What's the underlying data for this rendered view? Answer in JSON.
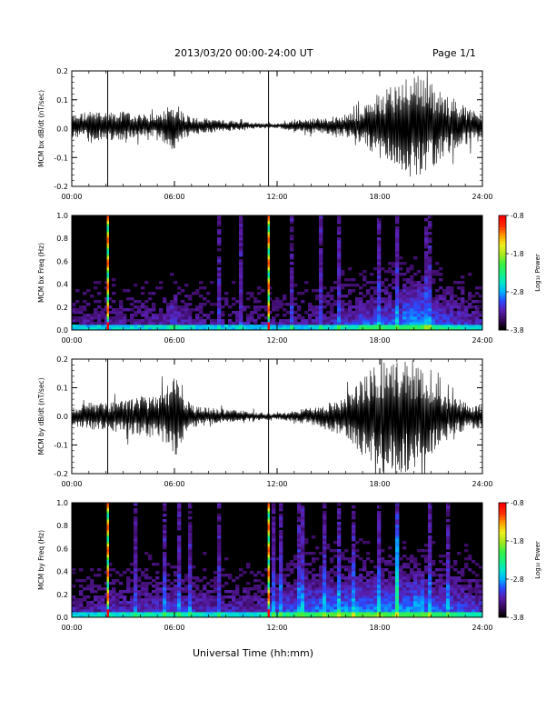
{
  "header": {
    "title": "2013/03/20  00:00-24:00 UT",
    "page": "Page 1/1"
  },
  "x_axis_title": "Universal Time (hh:mm)",
  "colors": {
    "trace": "#000000",
    "spectrogram_background": "#000000",
    "colorscale": [
      "#000000",
      "#3a0a5e",
      "#5a1fb0",
      "#2a49ff",
      "#00b4ff",
      "#00e8c8",
      "#19f07a",
      "#3cf040",
      "#a8e81c",
      "#f0f020",
      "#ffa000",
      "#ff3000",
      "#ff0000"
    ]
  },
  "chart_data": [
    {
      "type": "line",
      "ylabel": "MCM bx dB/dt (nT/sec)",
      "xlim": [
        0,
        24
      ],
      "ylim": [
        -0.2,
        0.2
      ],
      "xticks": [
        "00:00",
        "06:00",
        "12:00",
        "18:00",
        "24:00"
      ],
      "yticks": [
        "-0.2",
        "-0.1",
        "0.0",
        "0.1",
        "0.2"
      ],
      "marker_lines_hours": [
        2.1,
        11.5
      ],
      "envelope": {
        "hours": [
          0,
          1,
          2,
          3,
          4,
          5,
          6,
          6.5,
          7,
          8,
          9,
          10,
          11,
          12,
          13,
          14,
          15,
          16,
          16.5,
          17,
          17.5,
          18,
          18.5,
          19,
          19.5,
          20,
          20.5,
          21,
          21.5,
          22,
          23,
          24
        ],
        "amplitude": [
          0.04,
          0.05,
          0.05,
          0.05,
          0.04,
          0.04,
          0.09,
          0.05,
          0.03,
          0.025,
          0.02,
          0.015,
          0.01,
          0.008,
          0.02,
          0.025,
          0.03,
          0.04,
          0.05,
          0.06,
          0.09,
          0.12,
          0.14,
          0.15,
          0.17,
          0.2,
          0.18,
          0.15,
          0.12,
          0.1,
          0.07,
          0.04
        ],
        "offset": 0.01
      }
    },
    {
      "type": "heatmap",
      "ylabel": "MCM bx Freq (Hz)",
      "xlim": [
        0,
        24
      ],
      "ylim": [
        0,
        1.0
      ],
      "xticks": [
        "00:00",
        "06:00",
        "12:00",
        "18:00",
        "24:00"
      ],
      "yticks": [
        "0.0",
        "0.2",
        "0.4",
        "0.6",
        "0.8",
        "1.0"
      ],
      "colorbar": {
        "label": "Log₁₀ Power",
        "ticks": [
          "-0.8",
          "-1.8",
          "-2.8",
          "-3.8"
        ],
        "range": [
          -3.8,
          -0.8
        ]
      },
      "marker_lines_hours": [
        2.1,
        11.5
      ],
      "bursts": [
        {
          "hour": 6.0,
          "width": 0.5,
          "fmax": 0.35,
          "level": 0.35
        },
        {
          "hour": 17.5,
          "width": 1.6,
          "fmax": 0.25,
          "level": 0.4
        },
        {
          "hour": 20.0,
          "width": 1.2,
          "fmax": 0.45,
          "level": 0.45
        }
      ],
      "spikes_hours": [
        8.6,
        9.8,
        12.8,
        14.6,
        15.6,
        18.0,
        19.0,
        20.8,
        21.0
      ],
      "activity_by_hour": [
        0.2,
        0.2,
        0.22,
        0.22,
        0.22,
        0.24,
        0.28,
        0.22,
        0.2,
        0.2,
        0.2,
        0.2,
        0.2,
        0.22,
        0.22,
        0.25,
        0.3,
        0.34,
        0.38,
        0.42,
        0.45,
        0.4,
        0.35,
        0.3,
        0.25
      ]
    },
    {
      "type": "line",
      "ylabel": "MCM by dB/dt (nT/sec)",
      "xlim": [
        0,
        24
      ],
      "ylim": [
        -0.2,
        0.2
      ],
      "xticks": [
        "00:00",
        "06:00",
        "12:00",
        "18:00",
        "24:00"
      ],
      "yticks": [
        "-0.2",
        "-0.1",
        "0.0",
        "0.1",
        "0.2"
      ],
      "marker_lines_hours": [
        2.1,
        11.5
      ],
      "envelope": {
        "hours": [
          0,
          1,
          2,
          3,
          4,
          5,
          5.5,
          6,
          6.5,
          7,
          8,
          9,
          10,
          11,
          12,
          13,
          14,
          15,
          16,
          16.5,
          17,
          17.5,
          18,
          18.5,
          19,
          19.5,
          20,
          20.5,
          21,
          21.5,
          22,
          23,
          24
        ],
        "amplitude": [
          0.03,
          0.05,
          0.05,
          0.06,
          0.07,
          0.08,
          0.1,
          0.15,
          0.08,
          0.04,
          0.03,
          0.025,
          0.02,
          0.015,
          0.01,
          0.02,
          0.03,
          0.05,
          0.07,
          0.1,
          0.14,
          0.17,
          0.2,
          0.2,
          0.2,
          0.2,
          0.2,
          0.17,
          0.14,
          0.1,
          0.08,
          0.05,
          0.04
        ],
        "offset": 0.0
      }
    },
    {
      "type": "heatmap",
      "ylabel": "MCM by Freq (Hz)",
      "xlim": [
        0,
        24
      ],
      "ylim": [
        0,
        1.0
      ],
      "xticks": [
        "00:00",
        "06:00",
        "12:00",
        "18:00",
        "24:00"
      ],
      "yticks": [
        "0.0",
        "0.2",
        "0.4",
        "0.6",
        "0.8",
        "1.0"
      ],
      "colorbar": {
        "label": "Log₁₀ Power",
        "ticks": [
          "-0.8",
          "-1.8",
          "-2.8",
          "-3.8"
        ],
        "range": [
          -3.8,
          -0.8
        ]
      },
      "marker_lines_hours": [
        2.1,
        11.5
      ],
      "bursts": [
        {
          "hour": 19.0,
          "width": 0.4,
          "fmax": 1.0,
          "level": 0.7
        },
        {
          "hour": 20.2,
          "width": 0.6,
          "fmax": 0.4,
          "level": 0.5
        },
        {
          "hour": 17.5,
          "width": 1.2,
          "fmax": 0.2,
          "level": 0.4
        }
      ],
      "spikes_hours": [
        3.7,
        5.5,
        6.3,
        6.9,
        8.6,
        11.8,
        12.2,
        13.4,
        14.8,
        15.6,
        16.4,
        18.0,
        21.0,
        22.0
      ],
      "activity_by_hour": [
        0.22,
        0.24,
        0.26,
        0.28,
        0.3,
        0.32,
        0.35,
        0.3,
        0.28,
        0.27,
        0.27,
        0.28,
        0.35,
        0.4,
        0.45,
        0.48,
        0.5,
        0.5,
        0.5,
        0.5,
        0.5,
        0.45,
        0.42,
        0.38,
        0.32
      ]
    }
  ]
}
